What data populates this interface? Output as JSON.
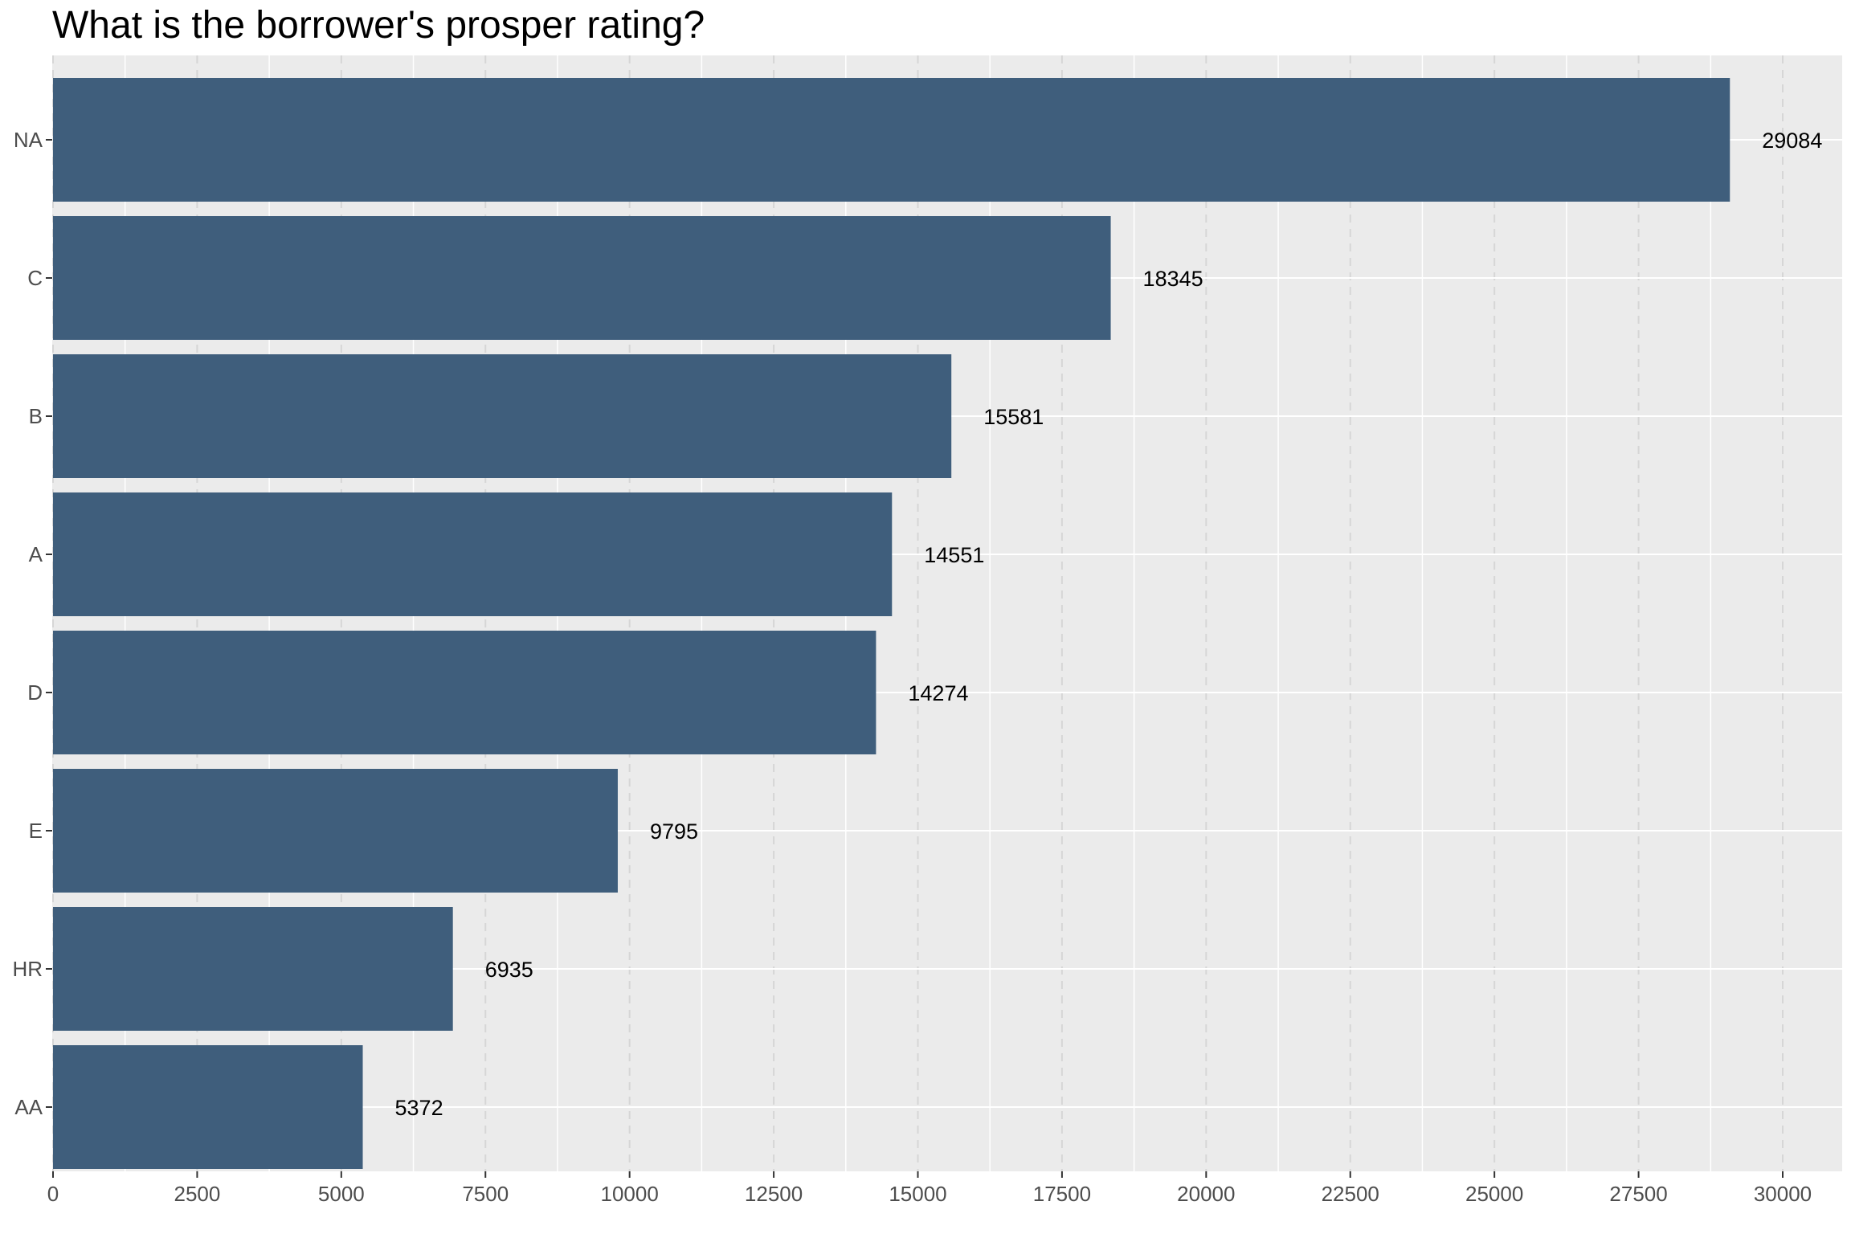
{
  "chart_data": {
    "type": "bar",
    "orientation": "horizontal",
    "title": "What is the borrower's prosper rating?",
    "xlabel": "",
    "ylabel": "",
    "categories": [
      "NA",
      "C",
      "B",
      "A",
      "D",
      "E",
      "HR",
      "AA"
    ],
    "values": [
      29084,
      18345,
      15581,
      14551,
      14274,
      9795,
      6935,
      5372
    ],
    "data_labels": [
      "29084",
      "18345",
      "15581",
      "14551",
      "14274",
      "9795",
      "6935",
      "5372"
    ],
    "xlim": [
      0,
      30900
    ],
    "x_ticks": [
      0,
      2500,
      5000,
      7500,
      10000,
      12500,
      15000,
      17500,
      20000,
      22500,
      25000,
      27500,
      30000
    ],
    "x_tick_labels": [
      "0",
      "2500",
      "5000",
      "7500",
      "10000",
      "12500",
      "15000",
      "17500",
      "20000",
      "22500",
      "25000",
      "27500",
      "30000"
    ],
    "grid": true,
    "legend": "none",
    "colors": {
      "bar": "#3f5e7c",
      "panel": "#ebebeb",
      "grid_major": "#ffffff",
      "grid_dashed": "#d6d6d6",
      "tick_text": "#4d4d4d",
      "label_text": "#000000"
    }
  }
}
